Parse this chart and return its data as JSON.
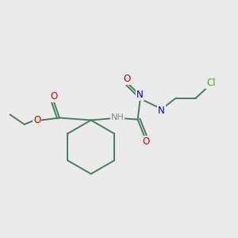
{
  "background_color": "#ebebeb",
  "bond_color": "#4a7c5f",
  "atom_colors": {
    "O": "#dd0000",
    "N": "#0000cc",
    "Cl": "#44aa00",
    "H": "#888888"
  },
  "figsize": [
    3.0,
    3.0
  ],
  "dpi": 100
}
